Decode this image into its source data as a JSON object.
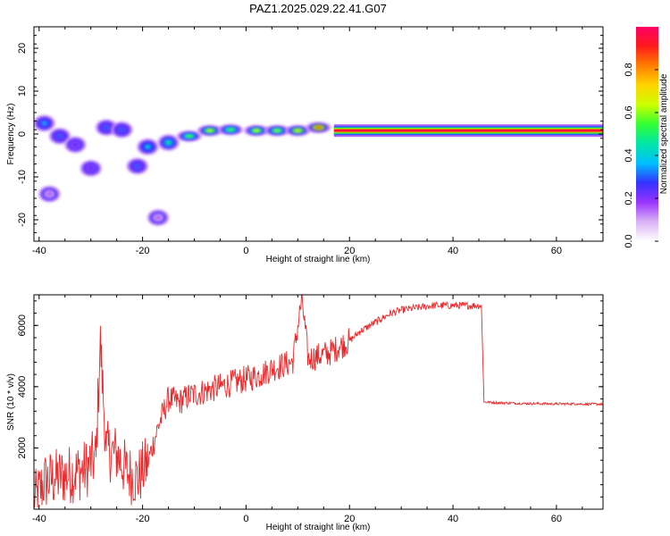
{
  "title": "PAZ1.2025.029.22.41.G07",
  "chart_data": [
    {
      "type": "heatmap",
      "xlabel": "Height of straight line (km)",
      "ylabel": "Frequency (Hz)",
      "xlim": [
        -41,
        69
      ],
      "ylim": [
        -25,
        25
      ],
      "xticks": [
        -40,
        -20,
        0,
        20,
        40,
        60
      ],
      "yticks": [
        -20,
        -10,
        0,
        10,
        20
      ],
      "colorbar": {
        "label": "Normalized spectral amplitude",
        "ticks": [
          0.0,
          0.2,
          0.4,
          0.6,
          0.8
        ],
        "tick_labels": [
          "0.0",
          "0.2",
          "0.4",
          "0.6",
          "0.8"
        ],
        "range": [
          0,
          1
        ],
        "colormap": [
          "#ffffff",
          "#d9b3f5",
          "#9933ff",
          "#3333ff",
          "#00bfff",
          "#00e6a8",
          "#33ff33",
          "#ccff00",
          "#ffd400",
          "#ff7f00",
          "#ff1a1a",
          "#ff0066"
        ]
      },
      "features": [
        {
          "x": -39,
          "y": 2.5,
          "amp": 0.35
        },
        {
          "x": -36,
          "y": -0.5,
          "amp": 0.3
        },
        {
          "x": -33,
          "y": -2.5,
          "amp": 0.25
        },
        {
          "x": -30,
          "y": -8,
          "amp": 0.25
        },
        {
          "x": -27,
          "y": 1.5,
          "amp": 0.3
        },
        {
          "x": -24,
          "y": 1,
          "amp": 0.3
        },
        {
          "x": -21,
          "y": -7.5,
          "amp": 0.3
        },
        {
          "x": -38,
          "y": -14,
          "amp": 0.15
        },
        {
          "x": -17,
          "y": -19.5,
          "amp": 0.15
        },
        {
          "x": -19,
          "y": -3,
          "amp": 0.4
        },
        {
          "x": -15,
          "y": -2,
          "amp": 0.45
        },
        {
          "x": -11,
          "y": -0.5,
          "amp": 0.55
        },
        {
          "x": -7,
          "y": 0.8,
          "amp": 0.65
        },
        {
          "x": -3,
          "y": 1,
          "amp": 0.55
        },
        {
          "x": 2,
          "y": 0.8,
          "amp": 0.65
        },
        {
          "x": 6,
          "y": 0.8,
          "amp": 0.6
        },
        {
          "x": 10,
          "y": 0.8,
          "amp": 0.7
        },
        {
          "x": 14,
          "y": 1.5,
          "amp": 0.85
        }
      ],
      "tone": {
        "x_start": 17,
        "x_end": 69,
        "y": 0.8,
        "amp": 0.95
      }
    },
    {
      "type": "line",
      "xlabel": "Height of straight line (km)",
      "ylabel": "SNR (10 * v/v)",
      "xlim": [
        -41,
        69
      ],
      "ylim": [
        0,
        7000
      ],
      "xticks": [
        -40,
        -20,
        0,
        20,
        40,
        60
      ],
      "yticks": [
        2000,
        4000,
        6000
      ],
      "color": "#e8282a",
      "x": [
        -41,
        -39,
        -37,
        -35,
        -33,
        -31,
        -29,
        -28.2,
        -27,
        -25,
        -23,
        -21,
        -19,
        -17,
        -15,
        -13,
        -11,
        -9,
        -7,
        -5,
        -3,
        -1,
        1,
        3,
        5,
        7,
        9,
        10.8,
        12,
        14,
        16,
        18,
        20,
        22,
        24,
        26,
        28,
        30,
        32,
        34,
        36,
        38,
        40,
        42,
        44,
        45.5,
        46,
        48,
        50,
        52,
        54,
        56,
        58,
        60,
        62,
        64,
        66,
        68,
        69
      ],
      "values": [
        200,
        900,
        1000,
        1100,
        1200,
        1300,
        1700,
        5500,
        1900,
        1800,
        1200,
        1000,
        1500,
        2700,
        3600,
        3500,
        3700,
        3800,
        3900,
        4000,
        4100,
        4200,
        4300,
        4400,
        4600,
        4700,
        4800,
        6900,
        4900,
        5000,
        5100,
        5300,
        5500,
        5800,
        6000,
        6200,
        6400,
        6500,
        6550,
        6600,
        6650,
        6650,
        6650,
        6650,
        6650,
        6650,
        3500,
        3480,
        3470,
        3460,
        3450,
        3450,
        3440,
        3440,
        3440,
        3440,
        3430,
        3430,
        3430
      ],
      "noise": [
        {
          "x_from": -41,
          "x_to": -19,
          "amp": 1000
        },
        {
          "x_from": -19,
          "x_to": 20,
          "amp": 450
        },
        {
          "x_from": 20,
          "x_to": 45.5,
          "amp": 120
        },
        {
          "x_from": 45.5,
          "x_to": 69,
          "amp": 40
        }
      ]
    }
  ]
}
